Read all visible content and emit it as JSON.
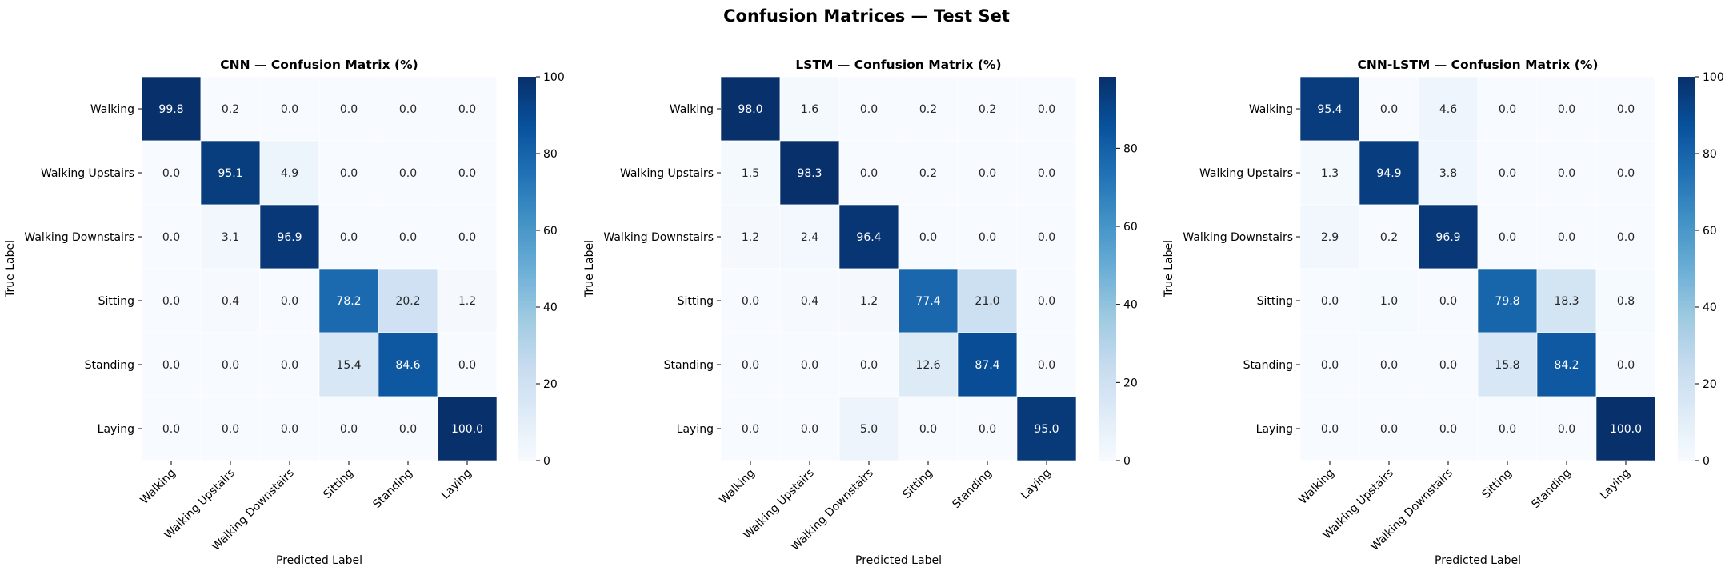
{
  "suptitle": "Confusion Matrices — Test Set",
  "chart_data": [
    {
      "type": "heatmap",
      "title": "CNN — Confusion Matrix (%)",
      "xlabel": "Predicted Label",
      "ylabel": "True Label",
      "rows": [
        "Walking",
        "Walking Upstairs",
        "Walking Downstairs",
        "Sitting",
        "Standing",
        "Laying"
      ],
      "cols": [
        "Walking",
        "Walking Upstairs",
        "Walking Downstairs",
        "Sitting",
        "Standing",
        "Laying"
      ],
      "values": [
        [
          99.8,
          0.2,
          0.0,
          0.0,
          0.0,
          0.0
        ],
        [
          0.0,
          95.1,
          4.9,
          0.0,
          0.0,
          0.0
        ],
        [
          0.0,
          3.1,
          96.9,
          0.0,
          0.0,
          0.0
        ],
        [
          0.0,
          0.4,
          0.0,
          78.2,
          20.2,
          1.2
        ],
        [
          0.0,
          0.0,
          0.0,
          15.4,
          84.6,
          0.0
        ],
        [
          0.0,
          0.0,
          0.0,
          0.0,
          0.0,
          100.0
        ]
      ],
      "colorbar": {
        "min": 0,
        "max": 100,
        "ticks": [
          0,
          20,
          40,
          60,
          80,
          100
        ]
      },
      "colormap": "Blues"
    },
    {
      "type": "heatmap",
      "title": "LSTM — Confusion Matrix (%)",
      "xlabel": "Predicted Label",
      "ylabel": "True Label",
      "rows": [
        "Walking",
        "Walking Upstairs",
        "Walking Downstairs",
        "Sitting",
        "Standing",
        "Laying"
      ],
      "cols": [
        "Walking",
        "Walking Upstairs",
        "Walking Downstairs",
        "Sitting",
        "Standing",
        "Laying"
      ],
      "values": [
        [
          98.0,
          1.6,
          0.0,
          0.2,
          0.2,
          0.0
        ],
        [
          1.5,
          98.3,
          0.0,
          0.2,
          0.0,
          0.0
        ],
        [
          1.2,
          2.4,
          96.4,
          0.0,
          0.0,
          0.0
        ],
        [
          0.0,
          0.4,
          1.2,
          77.4,
          21.0,
          0.0
        ],
        [
          0.0,
          0.0,
          0.0,
          12.6,
          87.4,
          0.0
        ],
        [
          0.0,
          0.0,
          5.0,
          0.0,
          0.0,
          95.0
        ]
      ],
      "colorbar": {
        "min": 0,
        "max": 98.3,
        "ticks": [
          0,
          20,
          40,
          60,
          80
        ]
      },
      "colormap": "Blues"
    },
    {
      "type": "heatmap",
      "title": "CNN-LSTM — Confusion Matrix (%)",
      "xlabel": "Predicted Label",
      "ylabel": "True Label",
      "rows": [
        "Walking",
        "Walking Upstairs",
        "Walking Downstairs",
        "Sitting",
        "Standing",
        "Laying"
      ],
      "cols": [
        "Walking",
        "Walking Upstairs",
        "Walking Downstairs",
        "Sitting",
        "Standing",
        "Laying"
      ],
      "values": [
        [
          95.4,
          0.0,
          4.6,
          0.0,
          0.0,
          0.0
        ],
        [
          1.3,
          94.9,
          3.8,
          0.0,
          0.0,
          0.0
        ],
        [
          2.9,
          0.2,
          96.9,
          0.0,
          0.0,
          0.0
        ],
        [
          0.0,
          1.0,
          0.0,
          79.8,
          18.3,
          0.8
        ],
        [
          0.0,
          0.0,
          0.0,
          15.8,
          84.2,
          0.0
        ],
        [
          0.0,
          0.0,
          0.0,
          0.0,
          0.0,
          100.0
        ]
      ],
      "colorbar": {
        "min": 0,
        "max": 100,
        "ticks": [
          0,
          20,
          40,
          60,
          80,
          100
        ]
      },
      "colormap": "Blues"
    }
  ]
}
